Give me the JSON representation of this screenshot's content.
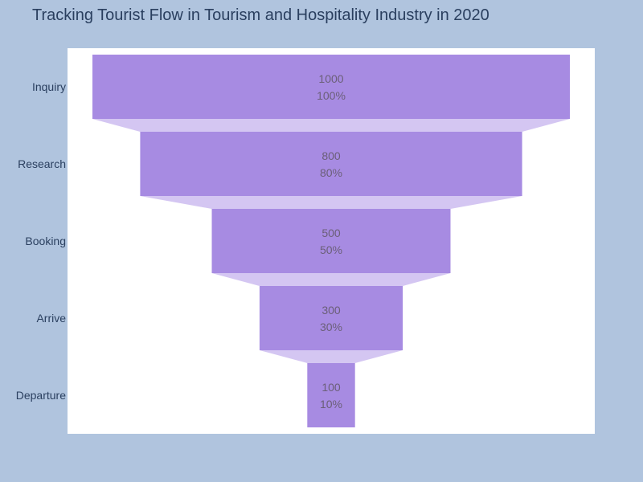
{
  "chart_data": {
    "type": "funnel",
    "title": "Tracking Tourist Flow in Tourism and Hospitality Industry in 2020",
    "categories": [
      "Inquiry",
      "Research",
      "Booking",
      "Arrive",
      "Departure"
    ],
    "values": [
      1000,
      800,
      500,
      300,
      100
    ],
    "percent_labels": [
      "100%",
      "80%",
      "50%",
      "30%",
      "10%"
    ],
    "colors": {
      "bar": "#a78be2",
      "connector": "#d4c6f2",
      "plot_background": "#ffffff",
      "page_background": "#b0c4de"
    }
  }
}
